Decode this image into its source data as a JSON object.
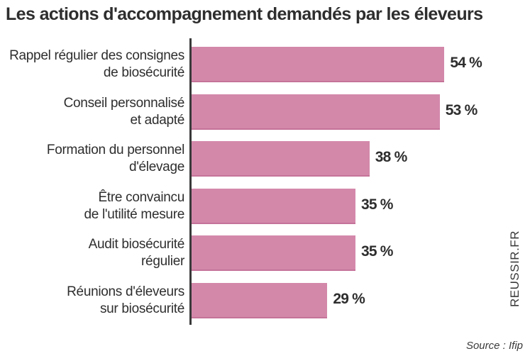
{
  "chart_data": {
    "type": "bar",
    "orientation": "horizontal",
    "title": "Les actions d'accompagnement demandés par les éleveurs",
    "categories": [
      [
        "Rappel régulier des consignes",
        "de biosécurité"
      ],
      [
        "Conseil personnalisé",
        "et adapté"
      ],
      [
        "Formation du personnel",
        "d'élevage"
      ],
      [
        "Être convaincu",
        "de l'utilité mesure"
      ],
      [
        "Audit biosécurité",
        "régulier"
      ],
      [
        "Réunions d'éleveurs",
        "sur biosécurité"
      ]
    ],
    "values": [
      54,
      53,
      38,
      35,
      35,
      29
    ],
    "value_labels": [
      "54 %",
      "53 %",
      "38 %",
      "35 %",
      "35 %",
      "29 %"
    ],
    "unit": "%",
    "xlim": [
      0,
      60
    ],
    "grid": false,
    "bar_color": "#d388aa"
  },
  "watermark": "REUSSIR.FR",
  "source": "Source : Ifip"
}
